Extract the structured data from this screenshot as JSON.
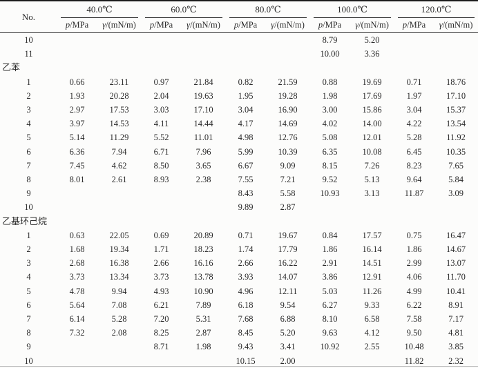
{
  "table": {
    "no_header": "No.",
    "temp_groups": [
      "40.0℃",
      "60.0℃",
      "80.0℃",
      "100.0℃",
      "120.0℃"
    ],
    "subheader": {
      "p_symbol": "p",
      "p_unit": "/MPa",
      "gamma_symbol": "γ",
      "gamma_unit": "/(mN/m)"
    },
    "rows": [
      {
        "type": "data",
        "no": "10",
        "values": [
          "",
          "",
          "",
          "",
          "",
          "",
          "8.79",
          "5.20",
          "",
          ""
        ]
      },
      {
        "type": "data",
        "no": "11",
        "values": [
          "",
          "",
          "",
          "",
          "",
          "",
          "10.00",
          "3.36",
          "",
          ""
        ]
      },
      {
        "type": "section",
        "label": "乙苯",
        "name": "section-ethylbenzene"
      },
      {
        "type": "data",
        "no": "1",
        "values": [
          "0.66",
          "23.11",
          "0.97",
          "21.84",
          "0.82",
          "21.59",
          "0.88",
          "19.69",
          "0.71",
          "18.76"
        ]
      },
      {
        "type": "data",
        "no": "2",
        "values": [
          "1.93",
          "20.28",
          "2.04",
          "19.63",
          "1.95",
          "19.28",
          "1.98",
          "17.69",
          "1.97",
          "17.10"
        ]
      },
      {
        "type": "data",
        "no": "3",
        "values": [
          "2.97",
          "17.53",
          "3.03",
          "17.10",
          "3.04",
          "16.90",
          "3.00",
          "15.86",
          "3.04",
          "15.37"
        ]
      },
      {
        "type": "data",
        "no": "4",
        "values": [
          "3.97",
          "14.53",
          "4.11",
          "14.44",
          "4.17",
          "14.69",
          "4.02",
          "14.00",
          "4.22",
          "13.54"
        ]
      },
      {
        "type": "data",
        "no": "5",
        "values": [
          "5.14",
          "11.29",
          "5.52",
          "11.01",
          "4.98",
          "12.76",
          "5.08",
          "12.01",
          "5.28",
          "11.92"
        ]
      },
      {
        "type": "data",
        "no": "6",
        "values": [
          "6.36",
          "7.94",
          "6.71",
          "7.96",
          "5.99",
          "10.39",
          "6.35",
          "10.08",
          "6.45",
          "10.35"
        ]
      },
      {
        "type": "data",
        "no": "7",
        "values": [
          "7.45",
          "4.62",
          "8.50",
          "3.65",
          "6.67",
          "9.09",
          "8.15",
          "7.26",
          "8.23",
          "7.65"
        ]
      },
      {
        "type": "data",
        "no": "8",
        "values": [
          "8.01",
          "2.61",
          "8.93",
          "2.38",
          "7.55",
          "7.21",
          "9.52",
          "5.13",
          "9.64",
          "5.84"
        ]
      },
      {
        "type": "data",
        "no": "9",
        "values": [
          "",
          "",
          "",
          "",
          "8.43",
          "5.58",
          "10.93",
          "3.13",
          "11.87",
          "3.09"
        ]
      },
      {
        "type": "data",
        "no": "10",
        "values": [
          "",
          "",
          "",
          "",
          "9.89",
          "2.87",
          "",
          "",
          "",
          ""
        ]
      },
      {
        "type": "section",
        "label": "乙基环己烷",
        "name": "section-ethylcyclohexane"
      },
      {
        "type": "data",
        "no": "1",
        "values": [
          "0.63",
          "22.05",
          "0.69",
          "20.89",
          "0.71",
          "19.67",
          "0.84",
          "17.57",
          "0.75",
          "16.47"
        ]
      },
      {
        "type": "data",
        "no": "2",
        "values": [
          "1.68",
          "19.34",
          "1.71",
          "18.23",
          "1.74",
          "17.79",
          "1.86",
          "16.14",
          "1.86",
          "14.67"
        ]
      },
      {
        "type": "data",
        "no": "3",
        "values": [
          "2.68",
          "16.38",
          "2.66",
          "16.16",
          "2.66",
          "16.22",
          "2.91",
          "14.51",
          "2.99",
          "13.07"
        ]
      },
      {
        "type": "data",
        "no": "4",
        "values": [
          "3.73",
          "13.34",
          "3.73",
          "13.78",
          "3.93",
          "14.07",
          "3.86",
          "12.91",
          "4.06",
          "11.70"
        ]
      },
      {
        "type": "data",
        "no": "5",
        "values": [
          "4.78",
          "9.94",
          "4.93",
          "10.90",
          "4.96",
          "12.11",
          "5.03",
          "11.26",
          "4.99",
          "10.41"
        ]
      },
      {
        "type": "data",
        "no": "6",
        "values": [
          "5.64",
          "7.08",
          "6.21",
          "7.89",
          "6.18",
          "9.54",
          "6.27",
          "9.33",
          "6.22",
          "8.91"
        ]
      },
      {
        "type": "data",
        "no": "7",
        "values": [
          "6.14",
          "5.28",
          "7.20",
          "5.31",
          "7.68",
          "6.88",
          "8.10",
          "6.58",
          "7.58",
          "7.17"
        ]
      },
      {
        "type": "data",
        "no": "8",
        "values": [
          "7.32",
          "2.08",
          "8.25",
          "2.87",
          "8.45",
          "5.20",
          "9.63",
          "4.12",
          "9.50",
          "4.81"
        ]
      },
      {
        "type": "data",
        "no": "9",
        "values": [
          "",
          "",
          "8.71",
          "1.98",
          "9.43",
          "3.41",
          "10.92",
          "2.55",
          "10.48",
          "3.85"
        ]
      },
      {
        "type": "data",
        "no": "10",
        "values": [
          "",
          "",
          "",
          "",
          "10.15",
          "2.00",
          "",
          "",
          "11.82",
          "2.32"
        ]
      }
    ],
    "layout_colors": {
      "heavy_rule": "#1c1c1c",
      "thin_rule": "#2a2a2a",
      "bottom_rule": "#b3b3b3",
      "text": "#2b2b2b"
    }
  }
}
